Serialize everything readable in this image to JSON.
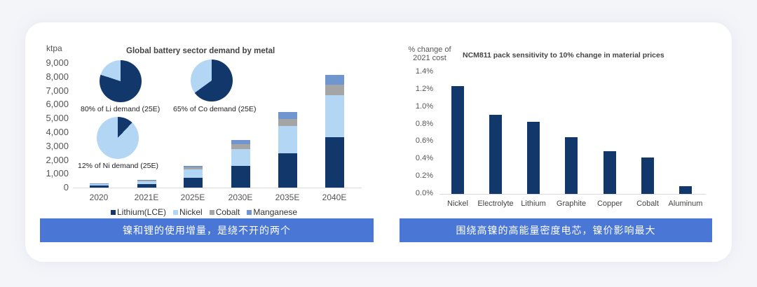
{
  "colors": {
    "lithium": "#12376a",
    "nickel": "#b3d6f5",
    "cobalt": "#a5a5a5",
    "manganese": "#7096d0",
    "bar_right": "#12376a",
    "banner": "#4a77d6"
  },
  "left": {
    "unit_label": "ktpa",
    "title": "Global battery sector demand by metal",
    "y_ticks": [
      "9,000",
      "8,000",
      "7,000",
      "6,000",
      "5,000",
      "4,000",
      "3,000",
      "2,000",
      "1,000",
      "0"
    ],
    "x_ticks": [
      "2020",
      "2021E",
      "2025E",
      "2030E",
      "2035E",
      "2040E"
    ],
    "legend": [
      "Lithium(LCE)",
      "Nickel",
      "Cobalt",
      "Manganese"
    ],
    "pies": [
      {
        "caption": "80% of Li demand (25E)",
        "pct": 80
      },
      {
        "caption": "65% of Co demand (25E)",
        "pct": 65
      },
      {
        "caption": "12% of Ni demand (25E)",
        "pct": 12
      }
    ],
    "banner": "镍和锂的使用增量，是绕不开的两个"
  },
  "right": {
    "unit_label_line1": "% change of",
    "unit_label_line2": "2021 cost",
    "title": "NCM811 pack sensitivity to 10% change in material prices",
    "y_ticks": [
      "1.4%",
      "1.2%",
      "1.0%",
      "0.8%",
      "0.6%",
      "0.4%",
      "0.2%",
      "0.0%"
    ],
    "x_ticks": [
      "Nickel",
      "Electrolyte",
      "Lithium",
      "Graphite",
      "Copper",
      "Cobalt",
      "Aluminum"
    ],
    "banner": "围绕高镍的高能量密度电芯，镍价影响最大"
  },
  "chart_data": [
    {
      "type": "bar",
      "stacked": true,
      "title": "Global battery sector demand by metal",
      "xlabel": "",
      "ylabel": "ktpa",
      "ylim": [
        0,
        9000
      ],
      "categories": [
        "2020",
        "2021E",
        "2025E",
        "2030E",
        "2035E",
        "2040E"
      ],
      "series": [
        {
          "name": "Lithium(LCE)",
          "values": [
            150,
            250,
            700,
            1550,
            2450,
            3650
          ]
        },
        {
          "name": "Nickel",
          "values": [
            100,
            200,
            600,
            1250,
            2000,
            3000
          ]
        },
        {
          "name": "Cobalt",
          "values": [
            30,
            50,
            150,
            350,
            500,
            750
          ]
        },
        {
          "name": "Manganese",
          "values": [
            20,
            50,
            100,
            300,
            500,
            750
          ]
        }
      ],
      "legend_position": "bottom",
      "grid": false,
      "inset_pies": [
        {
          "label": "80% of Li demand (25E)",
          "share": 80
        },
        {
          "label": "65% of Co demand (25E)",
          "share": 65
        },
        {
          "label": "12% of Ni demand (25E)",
          "share": 12
        }
      ]
    },
    {
      "type": "bar",
      "title": "NCM811 pack sensitivity to 10% change in material prices",
      "xlabel": "",
      "ylabel": "% change of 2021 cost",
      "ylim": [
        0,
        1.4
      ],
      "categories": [
        "Nickel",
        "Electrolyte",
        "Lithium",
        "Graphite",
        "Copper",
        "Cobalt",
        "Aluminum"
      ],
      "values": [
        1.24,
        0.91,
        0.83,
        0.65,
        0.49,
        0.42,
        0.09
      ],
      "grid": false
    }
  ]
}
